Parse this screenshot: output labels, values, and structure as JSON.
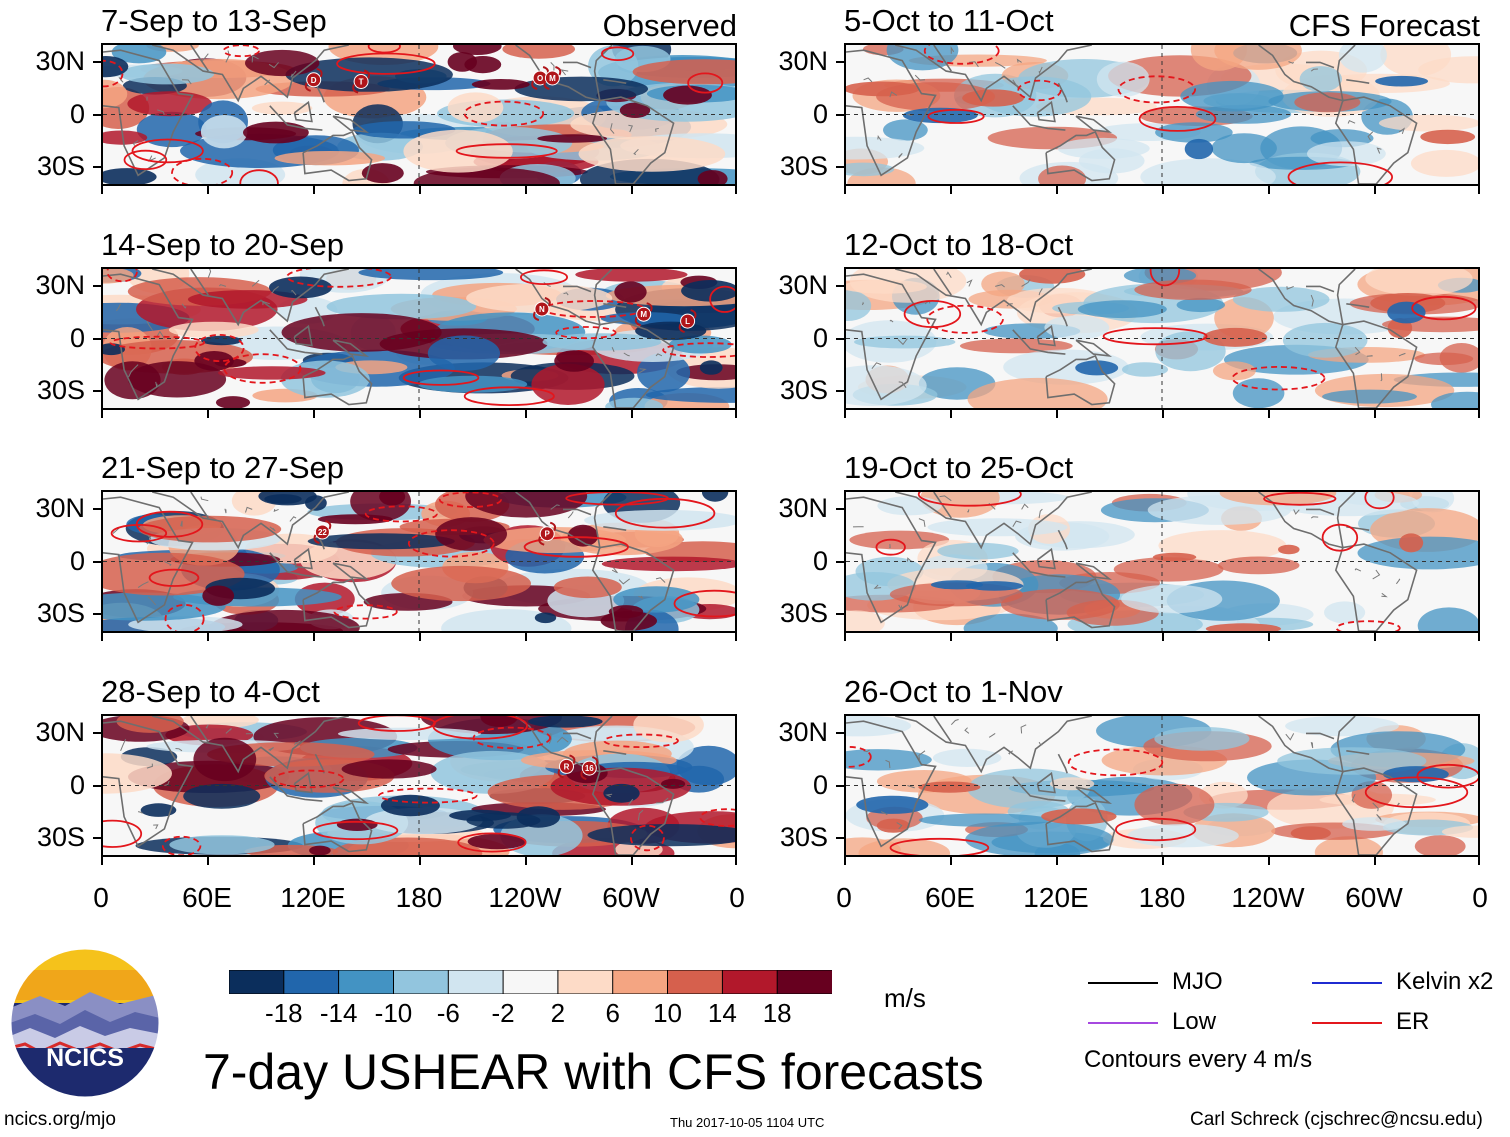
{
  "figure": {
    "main_title": "7-day USHEAR with CFS forecasts",
    "units": "m/s",
    "contour_note": "Contours every 4 m/s",
    "observed_label": "Observed",
    "forecast_label": "CFS Forecast",
    "logo_text": "NCICS",
    "footer_left": "ncics.org/mjo",
    "footer_center": "Thu 2017-10-05 1104 UTC",
    "footer_right": "Carl Schreck (cjschrec@ncsu.edu)"
  },
  "chart_data": {
    "type": "heatmap",
    "variable": "7-day zonal wind shear anomaly (USHEAR)",
    "y_ticks": [
      "30N",
      "0",
      "30S"
    ],
    "x_ticks": [
      "0",
      "60E",
      "120E",
      "180",
      "120W",
      "60W",
      "0"
    ],
    "colorbar": {
      "ticks": [
        "-18",
        "-14",
        "-10",
        "-6",
        "-2",
        "2",
        "6",
        "10",
        "14",
        "18"
      ],
      "colors": [
        "#0b2e5c",
        "#2166ac",
        "#4393c3",
        "#92c5de",
        "#d1e5f0",
        "#f7f7f7",
        "#fddbc7",
        "#f4a582",
        "#d6604d",
        "#b2182b",
        "#67001f"
      ]
    },
    "panels": [
      {
        "column": "observed",
        "period": "7-Sep to 13-Sep",
        "storms": [
          "D",
          "T",
          "O",
          "M"
        ]
      },
      {
        "column": "observed",
        "period": "14-Sep to 20-Sep",
        "storms": [
          "N",
          "M",
          "L"
        ]
      },
      {
        "column": "observed",
        "period": "21-Sep to 27-Sep",
        "storms": [
          "22",
          "P"
        ]
      },
      {
        "column": "observed",
        "period": "28-Sep to 4-Oct",
        "storms": [
          "R",
          "16"
        ]
      },
      {
        "column": "forecast",
        "period": "5-Oct to 11-Oct",
        "storms": []
      },
      {
        "column": "forecast",
        "period": "12-Oct to 18-Oct",
        "storms": []
      },
      {
        "column": "forecast",
        "period": "19-Oct to 25-Oct",
        "storms": []
      },
      {
        "column": "forecast",
        "period": "26-Oct to 1-Nov",
        "storms": []
      }
    ],
    "legend": [
      {
        "name": "MJO",
        "color": "#000000"
      },
      {
        "name": "Kelvin x2",
        "color": "#1f2bd1"
      },
      {
        "name": "Low",
        "color": "#a648e0"
      },
      {
        "name": "ER",
        "color": "#e3161c"
      }
    ]
  }
}
